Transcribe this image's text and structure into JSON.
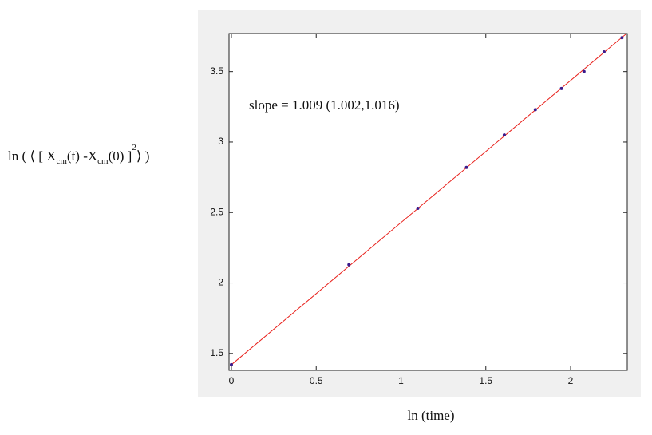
{
  "chart_data": {
    "type": "scatter",
    "xlabel": "ln (time)",
    "ylabel": [
      "ln ( ⟨ [ X",
      "cm",
      "(t)  -X",
      "cm",
      "(0) ]",
      "2",
      "⟩ )"
    ],
    "annotation": "slope = 1.009 (1.002,1.016)",
    "x": [
      0,
      0.693,
      1.099,
      1.386,
      1.609,
      1.792,
      1.946,
      2.079,
      2.197,
      2.303
    ],
    "values": [
      1.42,
      2.13,
      2.53,
      2.82,
      3.05,
      3.23,
      3.38,
      3.5,
      3.64,
      3.74
    ],
    "color": "#3a1a8c",
    "fit": {
      "x": [
        0,
        2.33
      ],
      "values": [
        1.42,
        3.77
      ],
      "color": "#e8211c"
    },
    "xlim": [
      -0.014,
      2.334
    ],
    "ylim": [
      1.38,
      3.77
    ],
    "xticks": [
      0,
      0.5,
      1,
      1.5,
      2
    ],
    "yticks": [
      1.5,
      2,
      2.5,
      3,
      3.5
    ]
  }
}
